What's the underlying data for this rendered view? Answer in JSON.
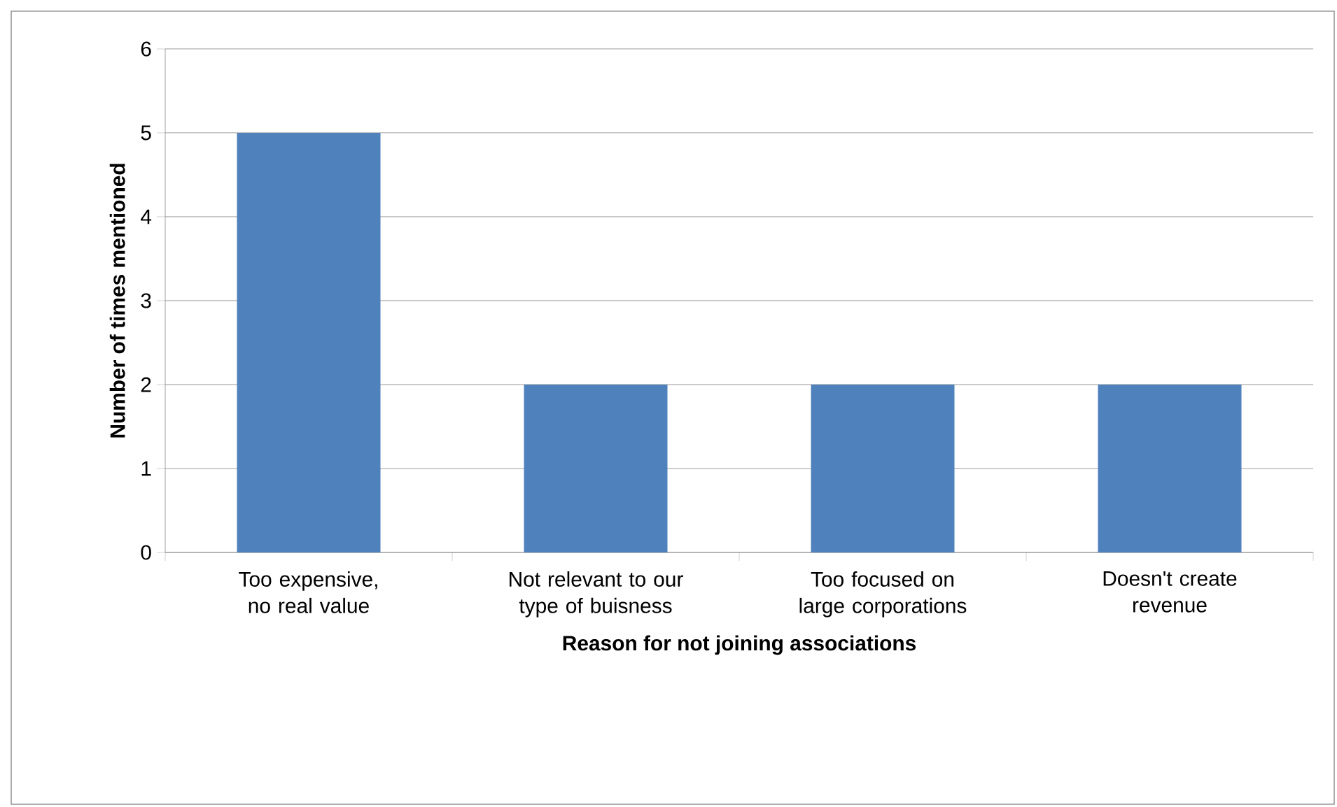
{
  "chart_data": {
    "type": "bar",
    "xlabel": "Reason for not joining associations",
    "ylabel": "Number of times mentioned",
    "categories": [
      "Too expensive, no real value",
      "Not relevant to our type of buisness",
      "Too focused on large corporations",
      "Doesn't create revenue"
    ],
    "values": [
      5,
      2,
      2,
      2
    ],
    "color": "#4f81bd",
    "ylim": [
      0,
      6
    ],
    "yticks": [
      0,
      1,
      2,
      3,
      4,
      5,
      6
    ],
    "grid": "y"
  }
}
